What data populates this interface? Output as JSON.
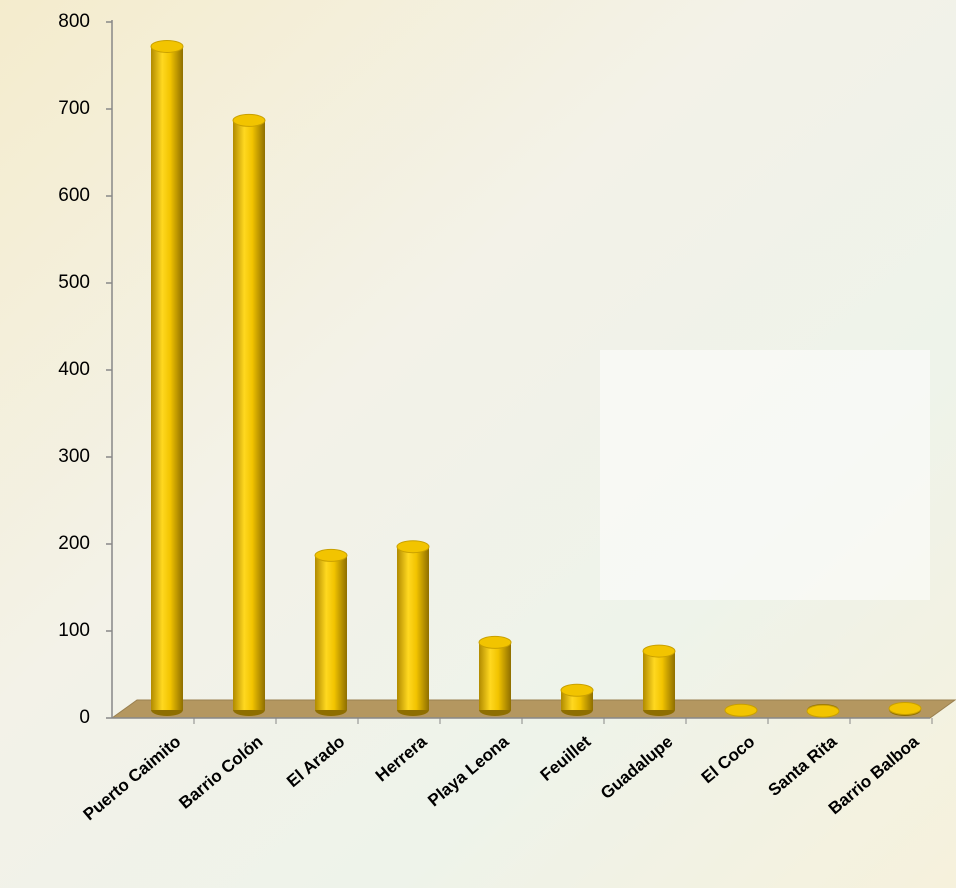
{
  "chart_data": {
    "type": "cylinder-bar",
    "categories": [
      "Puerto Caimito",
      "Barrio Colón",
      "El Arado",
      "Herrera",
      "Playa Leona",
      "Feuillet",
      "Guadalupe",
      "El Coco",
      "Santa Rita",
      "Barrio Balboa"
    ],
    "values": [
      765,
      680,
      180,
      190,
      80,
      25,
      70,
      2,
      1,
      4
    ],
    "color": "#f2c400",
    "ylim": [
      0,
      800
    ],
    "yticks": [
      0,
      100,
      200,
      300,
      400,
      500,
      600,
      700,
      800
    ],
    "grid": false
  }
}
